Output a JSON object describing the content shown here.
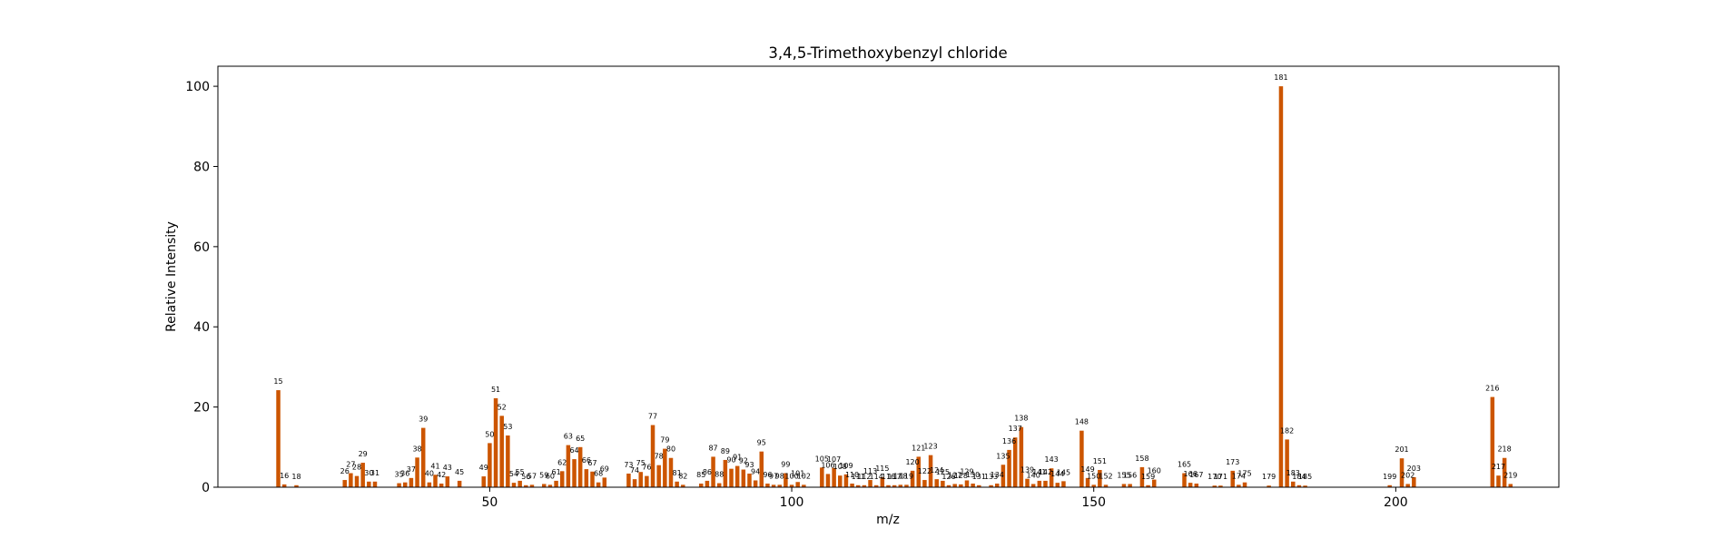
{
  "chart_data": {
    "type": "bar",
    "title": "3,4,5-Trimethoxybenzyl chloride",
    "xlabel": "m/z",
    "ylabel": "Relative Intensity",
    "xlim": [
      5,
      227
    ],
    "ylim": [
      0,
      105
    ],
    "xticks": [
      50,
      100,
      150,
      200
    ],
    "yticks": [
      0,
      20,
      40,
      60,
      80,
      100
    ],
    "grid": false,
    "bar_color": "#cc5500",
    "points": [
      {
        "x": 15,
        "y": 24.2
      },
      {
        "x": 16,
        "y": 0.7
      },
      {
        "x": 18,
        "y": 0.5
      },
      {
        "x": 26,
        "y": 1.8
      },
      {
        "x": 27,
        "y": 3.5
      },
      {
        "x": 28,
        "y": 2.8
      },
      {
        "x": 29,
        "y": 6.1
      },
      {
        "x": 30,
        "y": 1.4
      },
      {
        "x": 31,
        "y": 1.4
      },
      {
        "x": 35,
        "y": 1.0
      },
      {
        "x": 36,
        "y": 1.2
      },
      {
        "x": 37,
        "y": 2.3
      },
      {
        "x": 38,
        "y": 7.4
      },
      {
        "x": 39,
        "y": 14.8
      },
      {
        "x": 40,
        "y": 1.2
      },
      {
        "x": 41,
        "y": 3.1
      },
      {
        "x": 42,
        "y": 0.9
      },
      {
        "x": 43,
        "y": 2.7
      },
      {
        "x": 45,
        "y": 1.6
      },
      {
        "x": 49,
        "y": 2.7
      },
      {
        "x": 50,
        "y": 11.0
      },
      {
        "x": 51,
        "y": 22.2
      },
      {
        "x": 52,
        "y": 17.8
      },
      {
        "x": 53,
        "y": 12.9
      },
      {
        "x": 54,
        "y": 1.1
      },
      {
        "x": 55,
        "y": 1.6
      },
      {
        "x": 56,
        "y": 0.5
      },
      {
        "x": 57,
        "y": 0.6
      },
      {
        "x": 59,
        "y": 0.8
      },
      {
        "x": 60,
        "y": 0.6
      },
      {
        "x": 61,
        "y": 1.6
      },
      {
        "x": 62,
        "y": 4.0
      },
      {
        "x": 63,
        "y": 10.5
      },
      {
        "x": 64,
        "y": 7.0
      },
      {
        "x": 65,
        "y": 10.0
      },
      {
        "x": 66,
        "y": 4.5
      },
      {
        "x": 67,
        "y": 3.9
      },
      {
        "x": 68,
        "y": 1.2
      },
      {
        "x": 69,
        "y": 2.4
      },
      {
        "x": 73,
        "y": 3.4
      },
      {
        "x": 74,
        "y": 2.0
      },
      {
        "x": 75,
        "y": 3.8
      },
      {
        "x": 76,
        "y": 2.8
      },
      {
        "x": 77,
        "y": 15.5
      },
      {
        "x": 78,
        "y": 5.5
      },
      {
        "x": 79,
        "y": 9.6
      },
      {
        "x": 80,
        "y": 7.3
      },
      {
        "x": 81,
        "y": 1.4
      },
      {
        "x": 82,
        "y": 0.6
      },
      {
        "x": 85,
        "y": 0.9
      },
      {
        "x": 86,
        "y": 1.6
      },
      {
        "x": 87,
        "y": 7.6
      },
      {
        "x": 88,
        "y": 1.0
      },
      {
        "x": 89,
        "y": 6.8
      },
      {
        "x": 90,
        "y": 4.6
      },
      {
        "x": 91,
        "y": 5.3
      },
      {
        "x": 92,
        "y": 4.4
      },
      {
        "x": 93,
        "y": 3.4
      },
      {
        "x": 94,
        "y": 1.7
      },
      {
        "x": 95,
        "y": 8.9
      },
      {
        "x": 96,
        "y": 0.9
      },
      {
        "x": 97,
        "y": 0.6
      },
      {
        "x": 98,
        "y": 0.6
      },
      {
        "x": 99,
        "y": 3.5
      },
      {
        "x": 100,
        "y": 0.6
      },
      {
        "x": 101,
        "y": 1.3
      },
      {
        "x": 102,
        "y": 0.6
      },
      {
        "x": 105,
        "y": 4.9
      },
      {
        "x": 106,
        "y": 3.3
      },
      {
        "x": 107,
        "y": 4.8
      },
      {
        "x": 108,
        "y": 2.9
      },
      {
        "x": 109,
        "y": 3.2
      },
      {
        "x": 110,
        "y": 0.9
      },
      {
        "x": 111,
        "y": 0.5
      },
      {
        "x": 112,
        "y": 0.5
      },
      {
        "x": 113,
        "y": 1.8
      },
      {
        "x": 114,
        "y": 0.5
      },
      {
        "x": 115,
        "y": 2.5
      },
      {
        "x": 116,
        "y": 0.5
      },
      {
        "x": 117,
        "y": 0.5
      },
      {
        "x": 118,
        "y": 0.6
      },
      {
        "x": 119,
        "y": 0.6
      },
      {
        "x": 120,
        "y": 4.1
      },
      {
        "x": 121,
        "y": 7.6
      },
      {
        "x": 122,
        "y": 1.8
      },
      {
        "x": 123,
        "y": 8.0
      },
      {
        "x": 124,
        "y": 2.0
      },
      {
        "x": 125,
        "y": 1.6
      },
      {
        "x": 126,
        "y": 0.5
      },
      {
        "x": 127,
        "y": 0.8
      },
      {
        "x": 128,
        "y": 0.7
      },
      {
        "x": 129,
        "y": 1.7
      },
      {
        "x": 130,
        "y": 0.9
      },
      {
        "x": 131,
        "y": 0.5
      },
      {
        "x": 133,
        "y": 0.5
      },
      {
        "x": 134,
        "y": 0.9
      },
      {
        "x": 135,
        "y": 5.6
      },
      {
        "x": 136,
        "y": 9.3
      },
      {
        "x": 137,
        "y": 12.4
      },
      {
        "x": 138,
        "y": 15.0
      },
      {
        "x": 139,
        "y": 2.1
      },
      {
        "x": 140,
        "y": 0.8
      },
      {
        "x": 141,
        "y": 1.6
      },
      {
        "x": 142,
        "y": 1.6
      },
      {
        "x": 143,
        "y": 4.7
      },
      {
        "x": 144,
        "y": 1.1
      },
      {
        "x": 145,
        "y": 1.5
      },
      {
        "x": 148,
        "y": 14.1
      },
      {
        "x": 149,
        "y": 2.3
      },
      {
        "x": 150,
        "y": 0.6
      },
      {
        "x": 151,
        "y": 4.3
      },
      {
        "x": 152,
        "y": 0.6
      },
      {
        "x": 155,
        "y": 0.8
      },
      {
        "x": 156,
        "y": 0.8
      },
      {
        "x": 158,
        "y": 5.0
      },
      {
        "x": 159,
        "y": 0.5
      },
      {
        "x": 160,
        "y": 1.9
      },
      {
        "x": 165,
        "y": 3.5
      },
      {
        "x": 166,
        "y": 1.1
      },
      {
        "x": 167,
        "y": 0.9
      },
      {
        "x": 170,
        "y": 0.4
      },
      {
        "x": 171,
        "y": 0.4
      },
      {
        "x": 173,
        "y": 4.1
      },
      {
        "x": 174,
        "y": 0.6
      },
      {
        "x": 175,
        "y": 1.2
      },
      {
        "x": 179,
        "y": 0.4
      },
      {
        "x": 181,
        "y": 100.0
      },
      {
        "x": 182,
        "y": 11.9
      },
      {
        "x": 183,
        "y": 1.4
      },
      {
        "x": 184,
        "y": 0.5
      },
      {
        "x": 185,
        "y": 0.4
      },
      {
        "x": 199,
        "y": 0.5
      },
      {
        "x": 201,
        "y": 7.2
      },
      {
        "x": 202,
        "y": 0.8
      },
      {
        "x": 203,
        "y": 2.5
      },
      {
        "x": 216,
        "y": 22.5
      },
      {
        "x": 217,
        "y": 2.9
      },
      {
        "x": 218,
        "y": 7.3
      },
      {
        "x": 219,
        "y": 0.8
      }
    ]
  }
}
